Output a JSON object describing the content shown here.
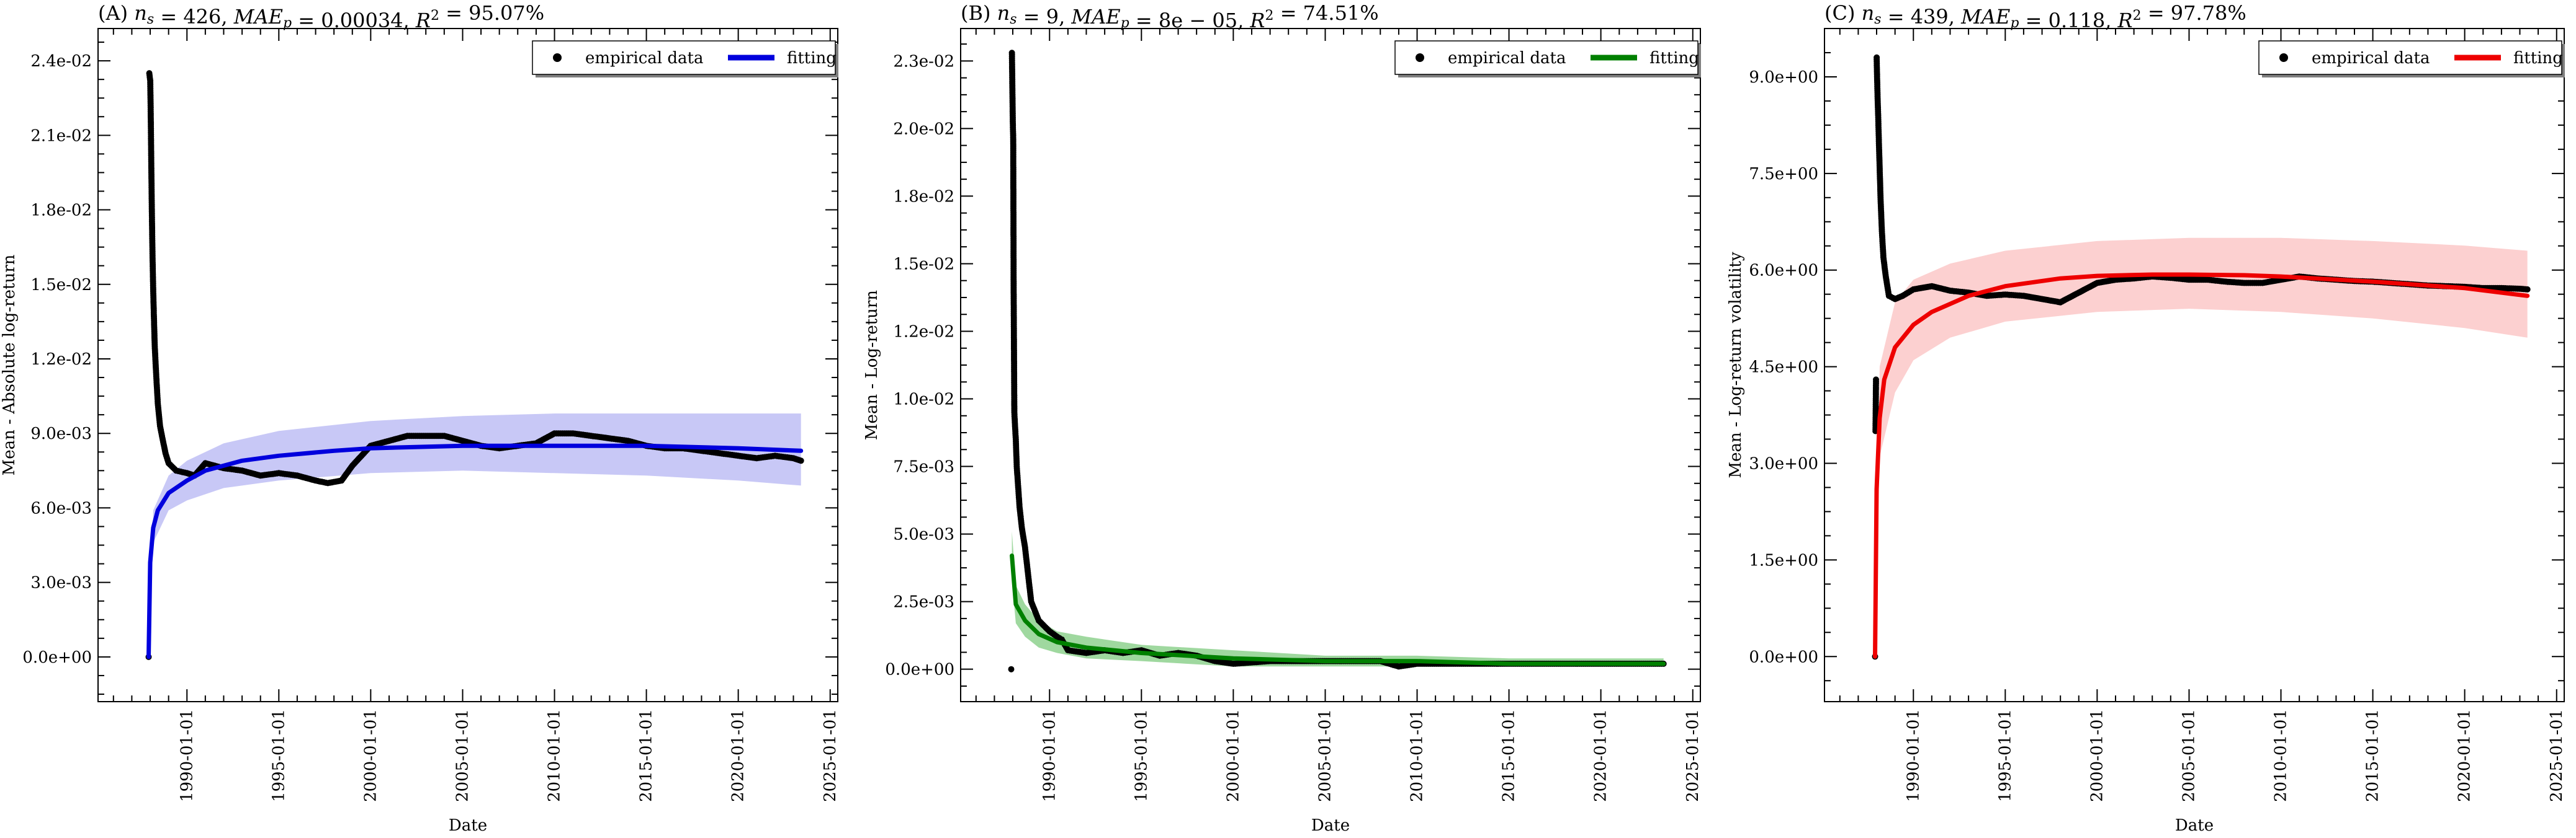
{
  "chart_data": [
    {
      "type": "line",
      "title": "(A) n_s = 426, MAE_p = 0.00034, R² = 95.07%",
      "xlabel": "Date",
      "ylabel": "Mean - Absolute log-return",
      "x_axis_type": "date",
      "xlim": [
        "1985-03-01",
        "2025-06-01"
      ],
      "xticks": [
        "1990-01-01",
        "1995-01-01",
        "2000-01-01",
        "2005-01-01",
        "2010-01-01",
        "2015-01-01",
        "2020-01-01",
        "2025-01-01"
      ],
      "ylim": [
        -0.0018,
        0.0253
      ],
      "yticks": [
        0.0,
        0.003,
        0.006,
        0.009,
        0.012,
        0.015,
        0.018,
        0.021,
        0.024
      ],
      "ytick_labels": [
        "0.0e+00",
        "3.0e-03",
        "6.0e-03",
        "9.0e-03",
        "1.2e-02",
        "1.5e-02",
        "1.8e-02",
        "2.1e-02",
        "2.4e-02"
      ],
      "legend": {
        "position": "top-right",
        "entries": [
          "empirical data",
          "fitting"
        ]
      },
      "colors": {
        "fit": "#0000dd",
        "band": "#c8c8f6",
        "points": "#000000"
      },
      "fit_label": "fitting",
      "series": [
        {
          "name": "empirical data",
          "kind": "scatter",
          "x": [
            "1987-12-01",
            "1987-12-15",
            "1988-01-02",
            "1988-01-10",
            "1988-01-18",
            "1988-01-25",
            "1988-02-01",
            "1988-02-10",
            "1988-02-20",
            "1988-03-01",
            "1988-03-15",
            "1988-04-01",
            "1988-05-01",
            "1988-06-01",
            "1988-07-15",
            "1988-09-01",
            "1988-11-01",
            "1989-01-01",
            "1989-06-01",
            "1990-01-01",
            "1990-06-01",
            "1991-01-01",
            "1992-01-01",
            "1993-01-01",
            "1994-01-01",
            "1995-01-01",
            "1996-01-01",
            "1997-01-01",
            "1997-09-01",
            "1998-06-01",
            "1999-01-01",
            "2000-01-01",
            "2001-01-01",
            "2002-01-01",
            "2003-01-01",
            "2004-01-01",
            "2005-01-01",
            "2006-01-01",
            "2007-01-01",
            "2008-01-01",
            "2009-01-01",
            "2010-01-01",
            "2011-01-01",
            "2012-01-01",
            "2013-01-01",
            "2014-01-01",
            "2015-01-01",
            "2016-01-01",
            "2017-01-01",
            "2018-01-01",
            "2019-01-01",
            "2020-01-01",
            "2021-01-01",
            "2022-01-01",
            "2023-01-01",
            "2023-06-01"
          ],
          "y": [
            0.0,
            0.0235,
            0.0232,
            0.0222,
            0.0208,
            0.0195,
            0.0183,
            0.017,
            0.0158,
            0.0148,
            0.0137,
            0.0125,
            0.0113,
            0.0102,
            0.0093,
            0.0088,
            0.0082,
            0.0078,
            0.0075,
            0.0074,
            0.0073,
            0.0078,
            0.0076,
            0.0075,
            0.0073,
            0.0074,
            0.0073,
            0.0071,
            0.007,
            0.0071,
            0.0077,
            0.0085,
            0.0087,
            0.0089,
            0.0089,
            0.0089,
            0.0087,
            0.0085,
            0.0084,
            0.0085,
            0.0086,
            0.009,
            0.009,
            0.0089,
            0.0088,
            0.0087,
            0.0085,
            0.0084,
            0.0084,
            0.0083,
            0.0082,
            0.0081,
            0.008,
            0.0081,
            0.008,
            0.0079
          ]
        },
        {
          "name": "fitting",
          "kind": "line",
          "x": [
            "1987-12-01",
            "1988-01-01",
            "1988-03-01",
            "1988-06-01",
            "1989-01-01",
            "1990-01-01",
            "1991-01-01",
            "1993-01-01",
            "1995-01-01",
            "1998-01-01",
            "2000-01-01",
            "2005-01-01",
            "2010-01-01",
            "2015-01-01",
            "2020-01-01",
            "2023-06-01"
          ],
          "y": [
            0.0,
            0.0038,
            0.0052,
            0.0059,
            0.0066,
            0.0071,
            0.0075,
            0.0079,
            0.0081,
            0.0083,
            0.0084,
            0.0085,
            0.0085,
            0.0085,
            0.0084,
            0.0083
          ]
        }
      ],
      "band": {
        "x": [
          "1987-12-01",
          "1988-03-01",
          "1989-01-01",
          "1990-01-01",
          "1992-01-01",
          "1995-01-01",
          "2000-01-01",
          "2005-01-01",
          "2010-01-01",
          "2015-01-01",
          "2020-01-01",
          "2023-06-01"
        ],
        "lower": [
          0.0,
          0.0046,
          0.0059,
          0.0063,
          0.0068,
          0.0071,
          0.0074,
          0.0075,
          0.0074,
          0.0073,
          0.0071,
          0.0069
        ],
        "upper": [
          0.0,
          0.0059,
          0.0073,
          0.0079,
          0.0086,
          0.0091,
          0.0095,
          0.0097,
          0.0098,
          0.0098,
          0.0098,
          0.0098
        ]
      }
    },
    {
      "type": "line",
      "title": "(B) n_s = 9, MAE_p = 8e − 05, R² = 74.51%",
      "xlabel": "Date",
      "ylabel": "Mean - Log-return",
      "x_axis_type": "date",
      "xlim": [
        "1985-03-01",
        "2025-06-01"
      ],
      "xticks": [
        "1990-01-01",
        "1995-01-01",
        "2000-01-01",
        "2005-01-01",
        "2010-01-01",
        "2015-01-01",
        "2020-01-01",
        "2025-01-01"
      ],
      "ylim": [
        -0.0012,
        0.0237
      ],
      "yticks": [
        0.0,
        0.0025,
        0.005,
        0.0075,
        0.01,
        0.0125,
        0.015,
        0.0175,
        0.02,
        0.0225
      ],
      "ytick_labels": [
        "0.0e+00",
        "2.5e-03",
        "5.0e-03",
        "7.5e-03",
        "1.0e-02",
        "1.2e-02",
        "1.5e-02",
        "1.8e-02",
        "2.0e-02",
        "2.3e-02"
      ],
      "legend": {
        "position": "top-right",
        "entries": [
          "empirical data",
          "fitting"
        ]
      },
      "colors": {
        "fit": "#008000",
        "band": "#9fd89f",
        "points": "#000000"
      },
      "fit_label": "fitting",
      "series": [
        {
          "name": "empirical data",
          "kind": "scatter",
          "x": [
            "1987-12-01",
            "1987-12-15",
            "1988-01-02",
            "1988-01-10",
            "1988-01-18",
            "1988-02-01",
            "1988-02-15",
            "1988-03-01",
            "1988-03-20",
            "1988-04-15",
            "1988-05-15",
            "1988-07-01",
            "1988-09-01",
            "1988-11-01",
            "1989-01-01",
            "1989-06-01",
            "1990-01-01",
            "1990-06-01",
            "1990-09-01",
            "1991-01-01",
            "1992-01-01",
            "1993-01-01",
            "1994-01-01",
            "1995-01-01",
            "1996-01-01",
            "1997-01-01",
            "1998-01-01",
            "1999-01-01",
            "2000-01-01",
            "2002-01-01",
            "2004-01-01",
            "2006-01-01",
            "2008-01-01",
            "2009-01-01",
            "2010-01-01",
            "2012-01-01",
            "2014-01-01",
            "2016-01-01",
            "2018-01-01",
            "2020-01-01",
            "2022-01-01",
            "2023-06-01"
          ],
          "y": [
            0.0,
            0.0228,
            0.0202,
            0.0196,
            0.0142,
            0.0095,
            0.009,
            0.0085,
            0.0075,
            0.0068,
            0.006,
            0.0052,
            0.0045,
            0.0035,
            0.0025,
            0.0018,
            0.0014,
            0.0012,
            0.0011,
            0.0007,
            0.0006,
            0.0007,
            0.0006,
            0.0007,
            0.0005,
            0.0006,
            0.0005,
            0.0003,
            0.0002,
            0.0003,
            0.0003,
            0.0003,
            0.0003,
            0.0001,
            0.0002,
            0.0002,
            0.0002,
            0.0002,
            0.0002,
            0.0002,
            0.0002,
            0.0002
          ]
        },
        {
          "name": "fitting",
          "kind": "line",
          "x": [
            "1987-12-15",
            "1988-03-01",
            "1988-09-01",
            "1989-06-01",
            "1990-06-01",
            "1992-01-01",
            "1995-01-01",
            "2000-01-01",
            "2005-01-01",
            "2010-01-01",
            "2015-01-01",
            "2020-01-01",
            "2023-06-01"
          ],
          "y": [
            0.0042,
            0.0024,
            0.0018,
            0.0013,
            0.001,
            0.0008,
            0.0006,
            0.0004,
            0.0003,
            0.0003,
            0.0002,
            0.0002,
            0.0002
          ]
        }
      ],
      "band": {
        "x": [
          "1987-12-15",
          "1988-03-01",
          "1988-09-01",
          "1989-06-01",
          "1990-06-01",
          "1992-01-01",
          "1995-01-01",
          "2000-01-01",
          "2005-01-01",
          "2010-01-01",
          "2015-01-01",
          "2020-01-01",
          "2023-06-01"
        ],
        "lower": [
          0.0033,
          0.0017,
          0.0012,
          0.0008,
          0.0006,
          0.0004,
          0.0003,
          0.0001,
          0.0001,
          0.0001,
          0.0001,
          0.0001,
          0.0001
        ],
        "upper": [
          0.0051,
          0.0031,
          0.0024,
          0.0018,
          0.0014,
          0.0012,
          0.0009,
          0.0007,
          0.0005,
          0.0005,
          0.0004,
          0.0004,
          0.0004
        ]
      }
    },
    {
      "type": "line",
      "title": "(C) n_s = 439, MAE_p = 0.118, R² = 97.78%",
      "xlabel": "Date",
      "ylabel": "Mean - Log-return volatility",
      "x_axis_type": "date",
      "xlim": [
        "1985-03-01",
        "2025-06-01"
      ],
      "xticks": [
        "1990-01-01",
        "1995-01-01",
        "2000-01-01",
        "2005-01-01",
        "2010-01-01",
        "2015-01-01",
        "2020-01-01",
        "2025-01-01"
      ],
      "ylim": [
        -0.7,
        9.75
      ],
      "yticks": [
        0.0,
        1.5,
        3.0,
        4.5,
        6.0,
        7.5,
        9.0
      ],
      "ytick_labels": [
        "0.0e+00",
        "1.5e+00",
        "3.0e+00",
        "4.5e+00",
        "6.0e+00",
        "7.5e+00",
        "9.0e+00"
      ],
      "legend": {
        "position": "top-right",
        "entries": [
          "empirical data",
          "fitting"
        ]
      },
      "colors": {
        "fit": "#ee0000",
        "band": "#fcd0d0",
        "points": "#000000"
      },
      "fit_label": "fitting",
      "series": [
        {
          "name": "empirical data",
          "kind": "scatter",
          "x": [
            "1987-12-01",
            "1987-12-10",
            "1987-12-20",
            "1988-01-02",
            "1988-01-10",
            "1988-01-20",
            "1988-02-01",
            "1988-02-15",
            "1988-03-01",
            "1988-03-20",
            "1988-04-15",
            "1988-05-15",
            "1988-07-01",
            "1988-09-01",
            "1989-01-01",
            "1989-06-01",
            "1990-01-01",
            "1991-01-01",
            "1992-01-01",
            "1993-01-01",
            "1994-01-01",
            "1995-01-01",
            "1996-01-01",
            "1997-01-01",
            "1998-01-01",
            "1999-01-01",
            "2000-01-01",
            "2001-01-01",
            "2002-01-01",
            "2003-01-01",
            "2004-01-01",
            "2005-01-01",
            "2006-01-01",
            "2007-01-01",
            "2008-01-01",
            "2009-01-01",
            "2010-01-01",
            "2011-01-01",
            "2012-01-01",
            "2013-01-01",
            "2014-01-01",
            "2015-01-01",
            "2016-01-01",
            "2017-01-01",
            "2018-01-01",
            "2019-01-01",
            "2020-01-01",
            "2021-01-01",
            "2022-01-01",
            "2023-01-01",
            "2023-06-01"
          ],
          "y": [
            0.0,
            3.5,
            4.3,
            9.3,
            9.0,
            8.7,
            8.4,
            8.0,
            7.6,
            7.1,
            6.6,
            6.2,
            5.9,
            5.6,
            5.55,
            5.6,
            5.7,
            5.75,
            5.68,
            5.65,
            5.6,
            5.62,
            5.6,
            5.55,
            5.5,
            5.65,
            5.8,
            5.85,
            5.87,
            5.9,
            5.88,
            5.85,
            5.85,
            5.82,
            5.8,
            5.8,
            5.85,
            5.9,
            5.87,
            5.85,
            5.83,
            5.82,
            5.8,
            5.78,
            5.76,
            5.75,
            5.74,
            5.72,
            5.72,
            5.71,
            5.7
          ]
        },
        {
          "name": "fitting",
          "kind": "line",
          "x": [
            "1987-12-01",
            "1988-01-01",
            "1988-03-01",
            "1988-06-01",
            "1989-01-01",
            "1990-01-01",
            "1991-01-01",
            "1993-01-01",
            "1995-01-01",
            "1998-01-01",
            "2000-01-01",
            "2003-01-01",
            "2005-01-01",
            "2008-01-01",
            "2010-01-01",
            "2015-01-01",
            "2020-01-01",
            "2023-06-01"
          ],
          "y": [
            0.0,
            2.6,
            3.7,
            4.3,
            4.8,
            5.15,
            5.35,
            5.6,
            5.75,
            5.87,
            5.91,
            5.93,
            5.93,
            5.92,
            5.9,
            5.82,
            5.72,
            5.6
          ]
        }
      ],
      "band": {
        "x": [
          "1987-12-01",
          "1988-03-01",
          "1989-01-01",
          "1990-01-01",
          "1992-01-01",
          "1995-01-01",
          "2000-01-01",
          "2005-01-01",
          "2010-01-01",
          "2015-01-01",
          "2020-01-01",
          "2023-06-01"
        ],
        "lower": [
          0.0,
          3.1,
          4.1,
          4.6,
          4.95,
          5.2,
          5.35,
          5.4,
          5.35,
          5.25,
          5.1,
          4.95
        ],
        "upper": [
          0.0,
          4.5,
          5.5,
          5.85,
          6.1,
          6.3,
          6.45,
          6.5,
          6.5,
          6.45,
          6.38,
          6.3
        ]
      }
    }
  ]
}
